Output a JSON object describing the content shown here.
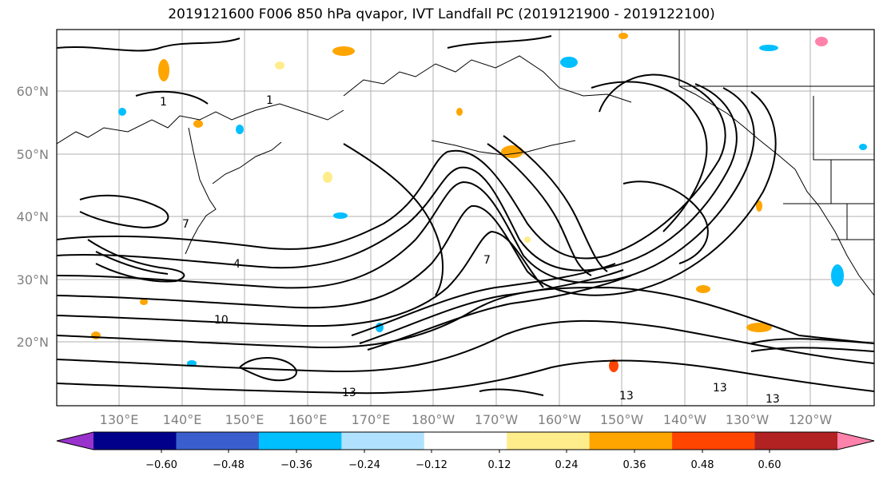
{
  "title": "2019121600 F006 850 hPa qvapor, IVT Landfall PC (2019121900 - 2019122100)",
  "lat_labels": [
    "60°N",
    "50°N",
    "40°N",
    "30°N",
    "20°N"
  ],
  "lon_labels": [
    "130°E",
    "140°E",
    "150°E",
    "160°E",
    "170°E",
    "180°W",
    "170°W",
    "160°W",
    "150°W",
    "140°W",
    "130°W",
    "120°W"
  ],
  "contour_labels": [
    "1",
    "1",
    "4",
    "7",
    "7",
    "10",
    "13",
    "13",
    "13",
    "13"
  ],
  "colorbar": {
    "ticks": [
      "−0.60",
      "−0.48",
      "−0.36",
      "−0.24",
      "−0.12",
      "0.12",
      "0.24",
      "0.36",
      "0.48",
      "0.60"
    ],
    "colors": [
      "#9932cc",
      "#00008b",
      "#3a5fcd",
      "#00bfff",
      "#b0e2ff",
      "#ffffff",
      "#ffec8b",
      "#ffa500",
      "#ff4500",
      "#b22222",
      "#ff82ab"
    ]
  }
}
